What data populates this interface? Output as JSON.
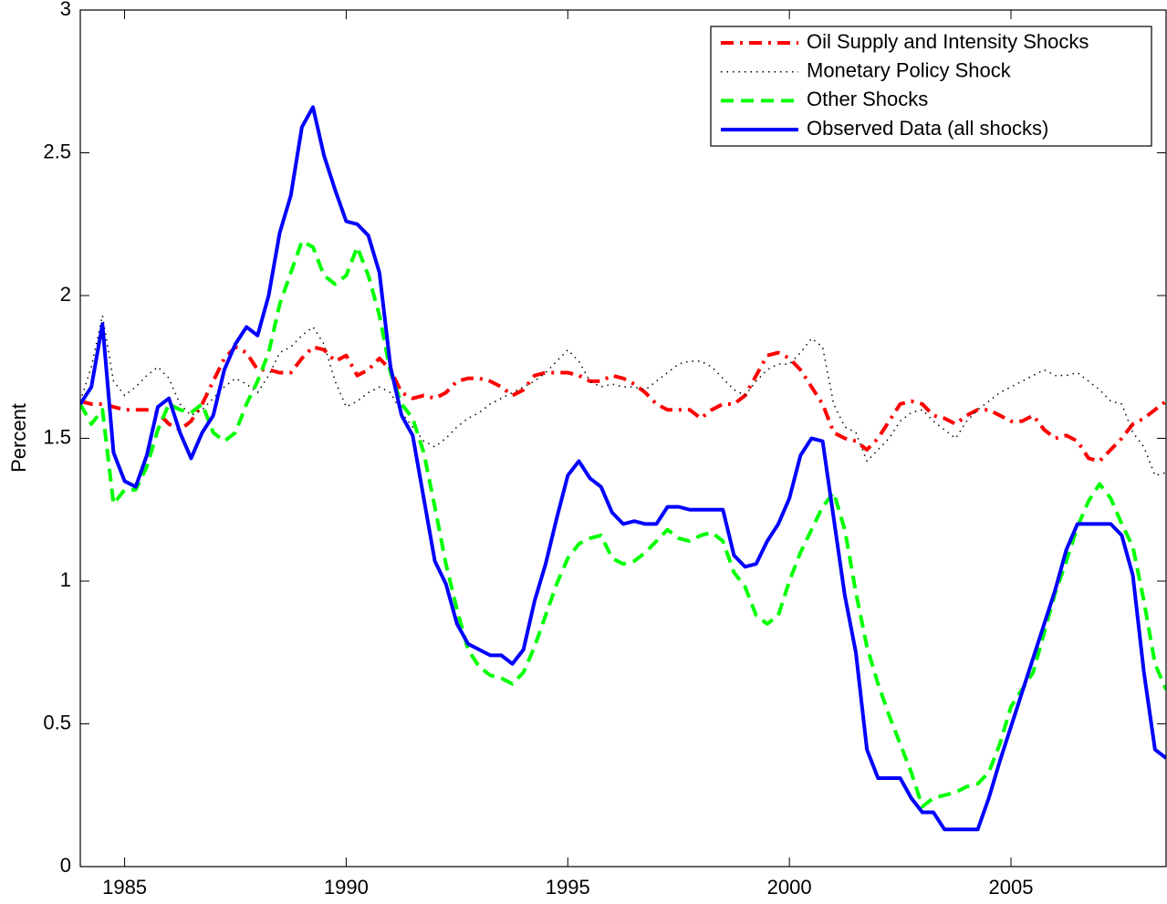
{
  "chart_data": {
    "type": "line",
    "y_label": "Percent",
    "xlim": [
      1984,
      2008.5
    ],
    "ylim": [
      0,
      3
    ],
    "xticks": [
      1985,
      1990,
      1995,
      2000,
      2005
    ],
    "yticks": [
      0,
      0.5,
      1,
      1.5,
      2,
      2.5,
      3
    ],
    "legend": "upper-right",
    "x": [
      1984,
      1984.25,
      1984.5,
      1984.75,
      1985,
      1985.25,
      1985.5,
      1985.75,
      1986,
      1986.25,
      1986.5,
      1986.75,
      1987,
      1987.25,
      1987.5,
      1987.75,
      1988,
      1988.25,
      1988.5,
      1988.75,
      1989,
      1989.25,
      1989.5,
      1989.75,
      1990,
      1990.25,
      1990.5,
      1990.75,
      1991,
      1991.25,
      1991.5,
      1991.75,
      1992,
      1992.25,
      1992.5,
      1992.75,
      1993,
      1993.25,
      1993.5,
      1993.75,
      1994,
      1994.25,
      1994.5,
      1994.75,
      1995,
      1995.25,
      1995.5,
      1995.75,
      1996,
      1996.25,
      1996.5,
      1996.75,
      1997,
      1997.25,
      1997.5,
      1997.75,
      1998,
      1998.25,
      1998.5,
      1998.75,
      1999,
      1999.25,
      1999.5,
      1999.75,
      2000,
      2000.25,
      2000.5,
      2000.75,
      2001,
      2001.25,
      2001.5,
      2001.75,
      2002,
      2002.25,
      2002.5,
      2002.75,
      2003,
      2003.25,
      2003.5,
      2003.75,
      2004,
      2004.25,
      2004.5,
      2004.75,
      2005,
      2005.25,
      2005.5,
      2005.75,
      2006,
      2006.25,
      2006.5,
      2006.75,
      2007,
      2007.25,
      2007.5,
      2007.75,
      2008,
      2008.25,
      2008.5
    ],
    "series": [
      {
        "name": "Oil Supply and Intensity Shocks",
        "color": "#ff0000",
        "linestyle": "dashdot",
        "values": [
          1.63,
          1.62,
          1.62,
          1.61,
          1.6,
          1.6,
          1.6,
          1.59,
          1.55,
          1.53,
          1.56,
          1.62,
          1.7,
          1.78,
          1.82,
          1.8,
          1.74,
          1.74,
          1.73,
          1.73,
          1.78,
          1.82,
          1.81,
          1.77,
          1.79,
          1.72,
          1.74,
          1.78,
          1.74,
          1.66,
          1.64,
          1.65,
          1.64,
          1.66,
          1.7,
          1.71,
          1.71,
          1.7,
          1.68,
          1.65,
          1.67,
          1.72,
          1.73,
          1.73,
          1.73,
          1.72,
          1.7,
          1.7,
          1.72,
          1.71,
          1.69,
          1.66,
          1.62,
          1.6,
          1.6,
          1.6,
          1.57,
          1.6,
          1.62,
          1.62,
          1.65,
          1.72,
          1.79,
          1.8,
          1.78,
          1.74,
          1.68,
          1.62,
          1.52,
          1.5,
          1.49,
          1.46,
          1.5,
          1.56,
          1.62,
          1.63,
          1.62,
          1.58,
          1.57,
          1.55,
          1.58,
          1.6,
          1.6,
          1.58,
          1.56,
          1.56,
          1.58,
          1.53,
          1.5,
          1.51,
          1.49,
          1.43,
          1.42,
          1.46,
          1.5,
          1.55,
          1.57,
          1.6,
          1.63
        ]
      },
      {
        "name": "Monetary Policy Shock",
        "color": "#000000",
        "linestyle": "dotted",
        "values": [
          1.63,
          1.75,
          1.93,
          1.7,
          1.65,
          1.68,
          1.72,
          1.75,
          1.71,
          1.62,
          1.58,
          1.6,
          1.64,
          1.68,
          1.71,
          1.69,
          1.66,
          1.72,
          1.8,
          1.82,
          1.86,
          1.89,
          1.83,
          1.7,
          1.61,
          1.63,
          1.66,
          1.68,
          1.66,
          1.59,
          1.54,
          1.49,
          1.47,
          1.5,
          1.54,
          1.57,
          1.59,
          1.62,
          1.64,
          1.66,
          1.68,
          1.7,
          1.73,
          1.77,
          1.81,
          1.77,
          1.7,
          1.68,
          1.69,
          1.68,
          1.68,
          1.67,
          1.7,
          1.73,
          1.76,
          1.77,
          1.77,
          1.75,
          1.71,
          1.67,
          1.65,
          1.7,
          1.74,
          1.76,
          1.76,
          1.8,
          1.85,
          1.82,
          1.62,
          1.54,
          1.52,
          1.42,
          1.46,
          1.5,
          1.56,
          1.59,
          1.6,
          1.56,
          1.53,
          1.5,
          1.56,
          1.6,
          1.63,
          1.66,
          1.68,
          1.7,
          1.72,
          1.74,
          1.72,
          1.72,
          1.73,
          1.7,
          1.67,
          1.63,
          1.62,
          1.52,
          1.47,
          1.37,
          1.38
        ]
      },
      {
        "name": "Other Shocks",
        "color": "#00ff00",
        "linestyle": "dashed",
        "values": [
          1.62,
          1.55,
          1.6,
          1.27,
          1.32,
          1.32,
          1.4,
          1.53,
          1.62,
          1.6,
          1.59,
          1.62,
          1.52,
          1.49,
          1.52,
          1.62,
          1.7,
          1.8,
          1.97,
          2.08,
          2.19,
          2.17,
          2.07,
          2.04,
          2.07,
          2.17,
          2.07,
          1.93,
          1.73,
          1.62,
          1.57,
          1.45,
          1.26,
          1.06,
          0.9,
          0.76,
          0.7,
          0.67,
          0.66,
          0.64,
          0.68,
          0.77,
          0.88,
          0.99,
          1.08,
          1.13,
          1.15,
          1.16,
          1.08,
          1.06,
          1.07,
          1.1,
          1.14,
          1.18,
          1.15,
          1.14,
          1.16,
          1.17,
          1.14,
          1.03,
          0.98,
          0.88,
          0.85,
          0.88,
          1.0,
          1.1,
          1.18,
          1.26,
          1.31,
          1.18,
          0.96,
          0.77,
          0.64,
          0.53,
          0.43,
          0.33,
          0.21,
          0.24,
          0.25,
          0.26,
          0.28,
          0.29,
          0.33,
          0.43,
          0.56,
          0.62,
          0.68,
          0.82,
          0.96,
          1.07,
          1.19,
          1.28,
          1.34,
          1.29,
          1.2,
          1.12,
          0.93,
          0.71,
          0.62
        ]
      },
      {
        "name": "Observed Data (all shocks)",
        "color": "#0000ff",
        "linestyle": "solid",
        "values": [
          1.62,
          1.68,
          1.9,
          1.45,
          1.35,
          1.33,
          1.44,
          1.61,
          1.64,
          1.52,
          1.43,
          1.52,
          1.58,
          1.74,
          1.83,
          1.89,
          1.86,
          2.0,
          2.22,
          2.35,
          2.59,
          2.66,
          2.49,
          2.37,
          2.26,
          2.25,
          2.21,
          2.08,
          1.75,
          1.58,
          1.51,
          1.29,
          1.07,
          0.99,
          0.85,
          0.78,
          0.76,
          0.74,
          0.74,
          0.71,
          0.76,
          0.93,
          1.06,
          1.22,
          1.37,
          1.42,
          1.36,
          1.33,
          1.24,
          1.2,
          1.21,
          1.2,
          1.2,
          1.26,
          1.26,
          1.25,
          1.25,
          1.25,
          1.25,
          1.09,
          1.05,
          1.06,
          1.14,
          1.2,
          1.29,
          1.44,
          1.5,
          1.49,
          1.22,
          0.95,
          0.75,
          0.41,
          0.31,
          0.31,
          0.31,
          0.24,
          0.19,
          0.19,
          0.13,
          0.13,
          0.13,
          0.13,
          0.24,
          0.37,
          0.49,
          0.61,
          0.73,
          0.85,
          0.97,
          1.11,
          1.2,
          1.2,
          1.2,
          1.2,
          1.16,
          1.02,
          0.68,
          0.41,
          0.38
        ]
      }
    ]
  }
}
